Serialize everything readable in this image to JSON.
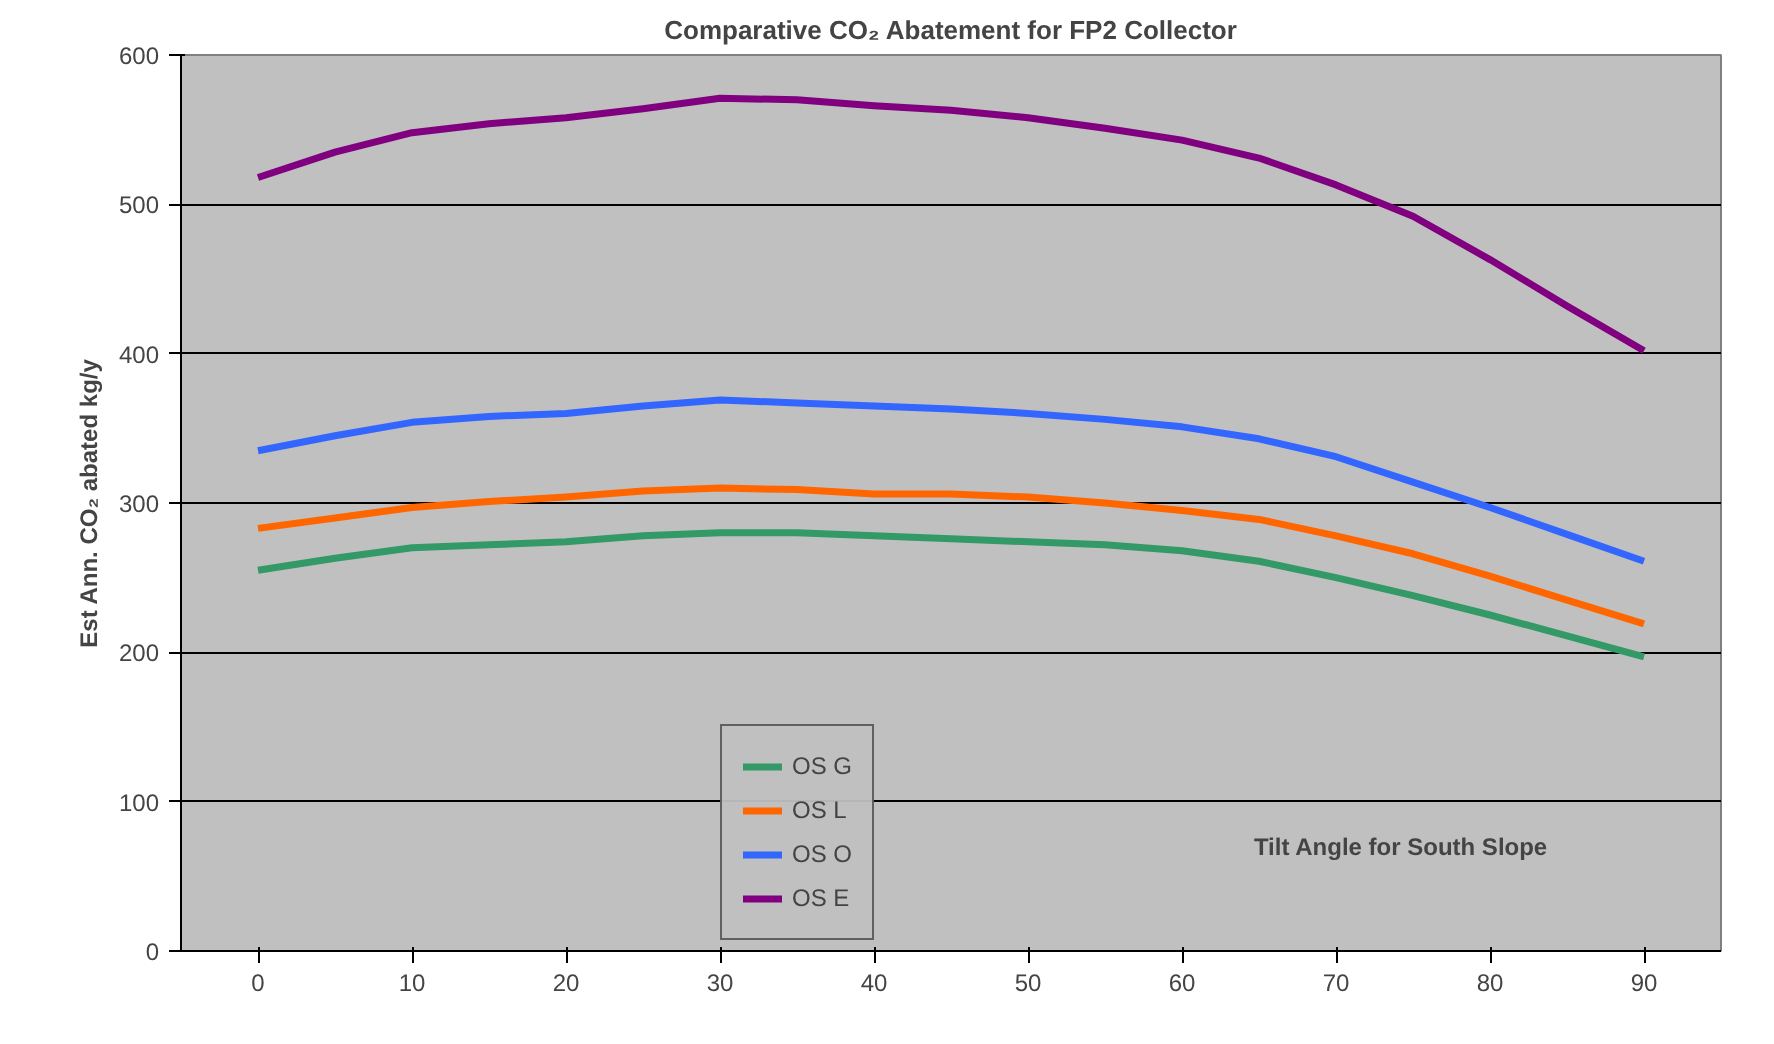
{
  "chart_data": {
    "type": "line",
    "title": "Comparative CO₂ Abatement for FP2 Collector",
    "xlabel": "Tilt Angle for South Slope",
    "ylabel": "Est Ann. CO₂ abated kg/y",
    "x": [
      0,
      5,
      10,
      15,
      20,
      25,
      30,
      35,
      40,
      45,
      50,
      55,
      60,
      65,
      70,
      75,
      80,
      85,
      90
    ],
    "series": [
      {
        "name": "OS G",
        "color": "#339966",
        "values": [
          255,
          263,
          270,
          272,
          274,
          278,
          280,
          280,
          278,
          276,
          274,
          272,
          268,
          261,
          250,
          238,
          225,
          211,
          197
        ]
      },
      {
        "name": "OS L",
        "color": "#ff6600",
        "values": [
          283,
          290,
          297,
          301,
          304,
          308,
          310,
          309,
          306,
          306,
          304,
          300,
          295,
          289,
          278,
          266,
          251,
          235,
          219
        ]
      },
      {
        "name": "OS O",
        "color": "#3366ff",
        "values": [
          335,
          345,
          354,
          358,
          360,
          365,
          369,
          367,
          365,
          363,
          360,
          356,
          351,
          343,
          331,
          314,
          297,
          279,
          261
        ]
      },
      {
        "name": "OS E",
        "color": "#800080",
        "values": [
          518,
          535,
          548,
          554,
          558,
          564,
          571,
          570,
          566,
          563,
          558,
          551,
          543,
          531,
          513,
          492,
          463,
          432,
          402
        ]
      }
    ],
    "xlim": [
      -5,
      95
    ],
    "xticks": [
      0,
      10,
      20,
      30,
      40,
      50,
      60,
      70,
      80,
      90
    ],
    "ylim": [
      0,
      600
    ],
    "yticks": [
      0,
      100,
      200,
      300,
      400,
      500,
      600
    ],
    "grid": "y",
    "legend": "bottom",
    "marker": "none",
    "line_style": "solid"
  }
}
